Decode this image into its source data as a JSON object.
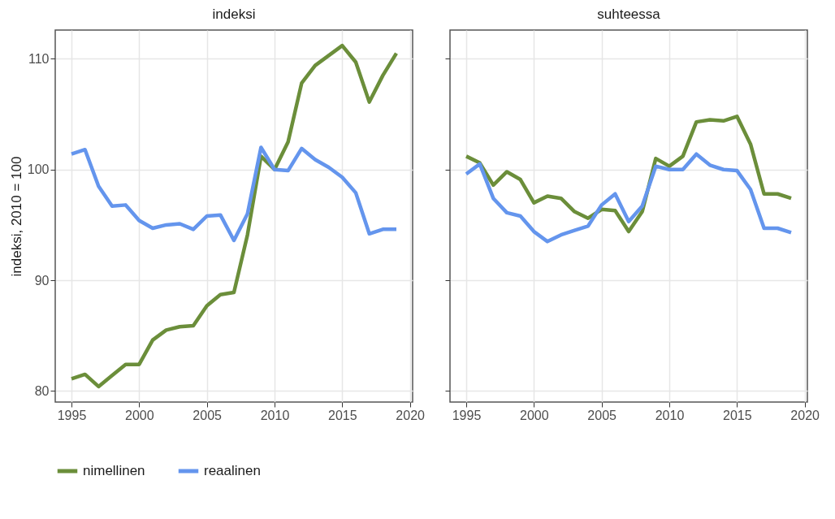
{
  "chart_data": [
    {
      "type": "line",
      "title": "indeksi",
      "ylabel": "indeksi, 2010 = 100",
      "x": [
        1995,
        1996,
        1997,
        1998,
        1999,
        2000,
        2001,
        2002,
        2003,
        2004,
        2005,
        2006,
        2007,
        2008,
        2009,
        2010,
        2011,
        2012,
        2013,
        2014,
        2015,
        2016,
        2017,
        2018,
        2019
      ],
      "xlim": [
        1993.8,
        2020.2
      ],
      "xticks": [
        1995,
        2000,
        2005,
        2010,
        2015,
        2020
      ],
      "ylim": [
        79,
        112.6
      ],
      "yticks": [
        80,
        90,
        100,
        110
      ],
      "grid": true,
      "legend": "bottom",
      "line_style": "solid",
      "series": [
        {
          "name": "nimellinen",
          "color": "#6b8e3a",
          "values": [
            81.1,
            81.5,
            80.4,
            81.4,
            82.4,
            82.4,
            84.6,
            85.5,
            85.8,
            85.9,
            87.7,
            88.7,
            88.9,
            94.1,
            101.2,
            100,
            102.5,
            107.8,
            109.4,
            110.3,
            111.2,
            109.7,
            106.1,
            108.5,
            110.5
          ]
        },
        {
          "name": "reaalinen",
          "color": "#6495ed",
          "values": [
            101.4,
            101.8,
            98.5,
            96.7,
            96.8,
            95.4,
            94.7,
            95.0,
            95.1,
            94.6,
            95.8,
            95.9,
            93.6,
            96.0,
            102.0,
            100,
            99.9,
            101.9,
            100.9,
            100.2,
            99.3,
            97.9,
            94.2,
            94.6,
            94.6
          ]
        }
      ]
    },
    {
      "type": "line",
      "title": "suhteessa",
      "x": [
        1995,
        1996,
        1997,
        1998,
        1999,
        2000,
        2001,
        2002,
        2003,
        2004,
        2005,
        2006,
        2007,
        2008,
        2009,
        2010,
        2011,
        2012,
        2013,
        2014,
        2015,
        2016,
        2017,
        2018,
        2019
      ],
      "xlim": [
        1993.8,
        2020.2
      ],
      "xticks": [
        1995,
        2000,
        2005,
        2010,
        2015,
        2020
      ],
      "ylim": [
        79,
        112.6
      ],
      "yticks": [
        80,
        90,
        100,
        110
      ],
      "tick_labels": "x",
      "grid": true,
      "legend": "bottom",
      "line_style": "solid",
      "series": [
        {
          "name": "nimellinen",
          "color": "#6b8e3a",
          "values": [
            101.2,
            100.6,
            98.6,
            99.8,
            99.1,
            97.0,
            97.6,
            97.4,
            96.2,
            95.6,
            96.4,
            96.3,
            94.4,
            96.2,
            101.0,
            100.3,
            101.2,
            104.3,
            104.5,
            104.4,
            104.8,
            102.3,
            97.8,
            97.8,
            97.4
          ]
        },
        {
          "name": "reaalinen",
          "color": "#6495ed",
          "values": [
            99.6,
            100.5,
            97.4,
            96.1,
            95.8,
            94.4,
            93.5,
            94.1,
            94.5,
            94.9,
            96.8,
            97.8,
            95.3,
            96.7,
            100.3,
            100,
            100,
            101.4,
            100.4,
            100,
            99.9,
            98.2,
            94.7,
            94.7,
            94.3
          ]
        }
      ]
    }
  ]
}
